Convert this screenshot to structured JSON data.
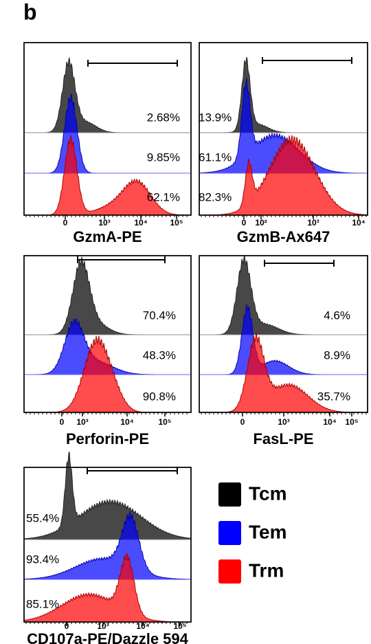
{
  "panel_label": "b",
  "panels": [
    {
      "x_label": "GzmA-PE",
      "x_ticks": [
        "0",
        "10³",
        "10⁴",
        "10⁵"
      ],
      "percentages": [
        "2.68%",
        "9.85%",
        "62.1%"
      ]
    },
    {
      "x_label": "GzmB-Ax647",
      "x_ticks": [
        "0",
        "10²",
        "10³",
        "10⁴"
      ],
      "percentages": [
        "13.9%",
        "61.1%",
        "82.3%"
      ]
    },
    {
      "x_label": "Perforin-PE",
      "x_ticks": [
        "0",
        "10³",
        "10⁴",
        "10⁵"
      ],
      "percentages": [
        "70.4%",
        "48.3%",
        "90.8%"
      ]
    },
    {
      "x_label": "FasL-PE",
      "x_ticks": [
        "0",
        "10³",
        "10⁴",
        "10⁵"
      ],
      "percentages": [
        "4.6%",
        "8.9%",
        "35.7%"
      ]
    },
    {
      "x_label": "CD107a-PE/Dazzle 594",
      "x_ticks": [
        "0",
        "10³",
        "10⁴",
        "10⁵"
      ],
      "percentages": [
        "55.4%",
        "93.4%",
        "85.1%"
      ]
    }
  ],
  "legend": [
    {
      "name": "Tcm",
      "color": "#000000"
    },
    {
      "name": "Tem",
      "color": "#0000ff"
    },
    {
      "name": "Trm",
      "color": "#ff0000"
    }
  ]
}
